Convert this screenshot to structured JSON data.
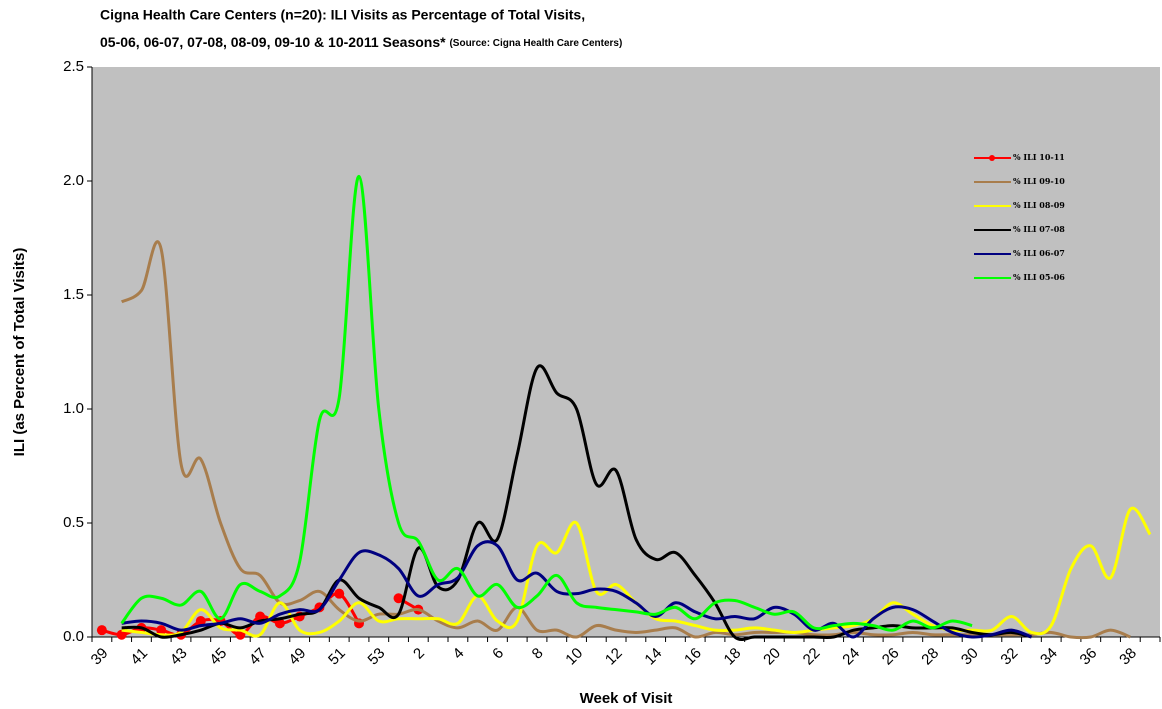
{
  "chart_data": {
    "type": "line",
    "title": [
      "Cigna Health Care Centers (n=20): ILI Visits as Percentage of Total Visits,",
      "05-06, 06-07, 07-08, 08-09, 09-10 & 10-2011 Seasons*"
    ],
    "source": "(Source: Cigna Health Care Centers)",
    "y_label": "ILI (as Percent of Total Visits)",
    "x_label": "Week of Visit",
    "categories": [
      "39",
      null,
      "41",
      null,
      "43",
      null,
      "45",
      null,
      "47",
      null,
      "49",
      null,
      "51",
      null,
      "53",
      null,
      "2",
      null,
      "4",
      null,
      "6",
      null,
      "8",
      null,
      "10",
      null,
      "12",
      null,
      "14",
      null,
      "16",
      null,
      "18",
      null,
      "20",
      null,
      "22",
      null,
      "24",
      null,
      "26",
      null,
      "28",
      null,
      "30",
      null,
      "32",
      null,
      "34",
      null,
      "36",
      null,
      "38",
      null
    ],
    "ylim": [
      0,
      2.5
    ],
    "yticks": [
      {
        "value": 0,
        "label": "0.0"
      },
      {
        "value": 0.5,
        "label": "0.5"
      },
      {
        "value": 1,
        "label": "1.0"
      },
      {
        "value": 1.5,
        "label": "1.5"
      },
      {
        "value": 2,
        "label": "2.0"
      },
      {
        "value": 2.5,
        "label": "2.5"
      }
    ],
    "series": [
      {
        "name": "% ILI 10-11",
        "color": "#ff0000",
        "markers": true,
        "values": [
          0.03,
          0.01,
          0.04,
          0.03,
          0.01,
          0.07,
          0.07,
          0.01,
          0.09,
          0.06,
          0.09,
          0.13,
          0.19,
          0.06,
          null,
          0.17,
          0.12,
          null,
          null,
          null,
          null,
          null,
          null,
          null,
          null,
          null,
          null,
          null,
          null,
          null,
          null,
          null,
          null,
          null,
          null,
          null,
          null,
          null,
          null,
          null,
          null,
          null,
          null,
          null,
          null,
          null,
          null,
          null,
          null,
          null,
          null,
          null,
          null,
          null
        ]
      },
      {
        "name": "% ILI 09-10",
        "color": "#a87d4c",
        "values": [
          null,
          1.47,
          1.52,
          1.7,
          0.76,
          0.78,
          0.5,
          0.3,
          0.27,
          0.15,
          0.16,
          0.2,
          0.12,
          0.07,
          0.1,
          0.1,
          0.12,
          0.07,
          0.04,
          0.07,
          0.03,
          0.13,
          0.03,
          0.03,
          0,
          0.05,
          0.03,
          0.02,
          0.03,
          0.04,
          0,
          0.02,
          0.01,
          0.02,
          0.02,
          0.02,
          0.01,
          0.01,
          0.02,
          0.01,
          0.01,
          0.02,
          0.01,
          0.01,
          0.01,
          0.01,
          0.01,
          0.01,
          0.02,
          0,
          0,
          0.03,
          0,
          null
        ]
      },
      {
        "name": "% ILI 08-09",
        "color": "#ffff00",
        "values": [
          null,
          0.03,
          0.02,
          0.01,
          0.02,
          0.12,
          0.04,
          0.03,
          0.01,
          0.15,
          0.03,
          0.02,
          0.07,
          0.15,
          0.07,
          0.08,
          0.08,
          0.08,
          0.06,
          0.18,
          0.07,
          0.07,
          0.4,
          0.37,
          0.5,
          0.2,
          0.23,
          0.15,
          0.08,
          0.07,
          0.05,
          0.03,
          0.03,
          0.04,
          0.03,
          0.02,
          0.03,
          0.04,
          0.05,
          0.08,
          0.15,
          0.1,
          0.05,
          0.03,
          0.03,
          0.03,
          0.09,
          0.02,
          0.05,
          0.3,
          0.4,
          0.26,
          0.56,
          0.45
        ]
      },
      {
        "name": "% ILI 07-08",
        "color": "#000000",
        "values": [
          null,
          0.04,
          0.04,
          0,
          0.01,
          0.03,
          0.06,
          0.04,
          0.07,
          0.08,
          0.1,
          0.12,
          0.25,
          0.17,
          0.13,
          0.1,
          0.39,
          0.22,
          0.25,
          0.5,
          0.43,
          0.8,
          1.18,
          1.07,
          1.0,
          0.67,
          0.73,
          0.43,
          0.34,
          0.37,
          0.27,
          0.15,
          0,
          0,
          0,
          0,
          0,
          0,
          0.03,
          0.04,
          0.05,
          0.04,
          0.04,
          0.04,
          0.02,
          0.01,
          0.02,
          0,
          null,
          null,
          null,
          null,
          null,
          null
        ]
      },
      {
        "name": "% ILI 06-07",
        "color": "#000080",
        "values": [
          null,
          0.06,
          0.07,
          0.06,
          0.03,
          0.05,
          0.06,
          0.08,
          0.06,
          0.1,
          0.12,
          0.12,
          0.25,
          0.37,
          0.36,
          0.3,
          0.18,
          0.23,
          0.26,
          0.4,
          0.4,
          0.25,
          0.28,
          0.2,
          0.19,
          0.21,
          0.2,
          0.15,
          0.09,
          0.15,
          0.11,
          0.08,
          0.09,
          0.08,
          0.13,
          0.1,
          0.03,
          0.06,
          0,
          0.08,
          0.13,
          0.12,
          0.07,
          0.02,
          0,
          0.01,
          0.03,
          0,
          null,
          null,
          null,
          null,
          null,
          null
        ]
      },
      {
        "name": "% ILI 05-06",
        "color": "#00ff00",
        "values": [
          null,
          0.06,
          0.17,
          0.17,
          0.14,
          0.2,
          0.08,
          0.23,
          0.2,
          0.18,
          0.33,
          0.95,
          1.05,
          2.02,
          1.0,
          0.5,
          0.42,
          0.25,
          0.3,
          0.18,
          0.23,
          0.13,
          0.18,
          0.27,
          0.15,
          0.13,
          0.12,
          0.11,
          0.1,
          0.13,
          0.08,
          0.15,
          0.16,
          0.13,
          0.1,
          0.11,
          0.04,
          0.05,
          0.06,
          0.05,
          0.03,
          0.07,
          0.04,
          0.07,
          0.05,
          null,
          null,
          null,
          null,
          null,
          null,
          null,
          null,
          null
        ]
      }
    ],
    "legend": "upper right"
  }
}
